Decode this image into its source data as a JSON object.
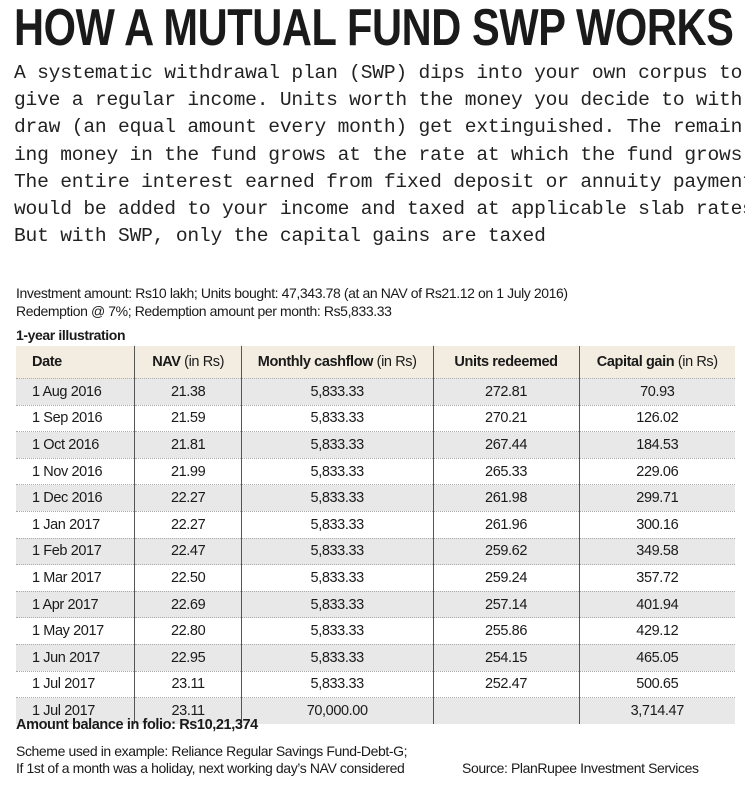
{
  "title": "HOW A MUTUAL FUND SWP WORKS",
  "intro_lines": [
    "A systematic withdrawal plan (SWP) dips into your own corpus to",
    "give a regular income. Units worth the money you decide to with-",
    "draw (an equal amount every month) get extinguished. The remain-",
    "ing money in the fund grows at the rate at which the fund grows.",
    "The entire interest earned from fixed deposit or annuity payments",
    "would be added to your income and taxed at applicable slab rates.",
    "But with SWP, only the capital gains are taxed"
  ],
  "info": {
    "line1": "Investment amount: Rs10 lakh; Units bought: 47,343.78 (at an NAV of Rs21.12 on 1 July 2016)",
    "line2": "Redemption @ 7%; Redemption amount per month: Rs5,833.33",
    "illustration_label": "1-year illustration"
  },
  "table": {
    "headers": [
      {
        "label": "Date",
        "unit": ""
      },
      {
        "label": "NAV",
        "unit": " (in Rs)"
      },
      {
        "label": "Monthly cashflow",
        "unit": " (in Rs)"
      },
      {
        "label": "Units redeemed",
        "unit": ""
      },
      {
        "label": "Capital gain",
        "unit": " (in Rs)"
      }
    ],
    "rows": [
      [
        "1 Aug 2016",
        "21.38",
        "5,833.33",
        "272.81",
        "70.93"
      ],
      [
        "1 Sep 2016",
        "21.59",
        "5,833.33",
        "270.21",
        "126.02"
      ],
      [
        "1 Oct 2016",
        "21.81",
        "5,833.33",
        "267.44",
        "184.53"
      ],
      [
        "1 Nov 2016",
        "21.99",
        "5,833.33",
        "265.33",
        "229.06"
      ],
      [
        "1 Dec 2016",
        "22.27",
        "5,833.33",
        "261.98",
        "299.71"
      ],
      [
        "1 Jan 2017",
        "22.27",
        "5,833.33",
        "261.96",
        "300.16"
      ],
      [
        "1 Feb 2017",
        "22.47",
        "5,833.33",
        "259.62",
        "349.58"
      ],
      [
        "1 Mar 2017",
        "22.50",
        "5,833.33",
        "259.24",
        "357.72"
      ],
      [
        "1 Apr 2017",
        "22.69",
        "5,833.33",
        "257.14",
        "401.94"
      ],
      [
        "1 May 2017",
        "22.80",
        "5,833.33",
        "255.86",
        "429.12"
      ],
      [
        "1 Jun 2017",
        "22.95",
        "5,833.33",
        "254.15",
        "465.05"
      ],
      [
        "1 Jul 2017",
        "23.11",
        "5,833.33",
        "252.47",
        "500.65"
      ],
      [
        "1 Jul 2017",
        "23.11",
        "70,000.00",
        "",
        "3,714.47"
      ]
    ]
  },
  "balance": "Amount balance in folio: Rs10,21,374",
  "footnote_lines": [
    "Scheme used in example: Reliance Regular Savings Fund-Debt-G;",
    "If 1st of a month was a holiday, next working day’s NAV considered"
  ],
  "source": "Source: PlanRupee Investment Services",
  "colors": {
    "header_bg": "#f3ece1",
    "alt_row_bg": "#e8e8e8"
  }
}
